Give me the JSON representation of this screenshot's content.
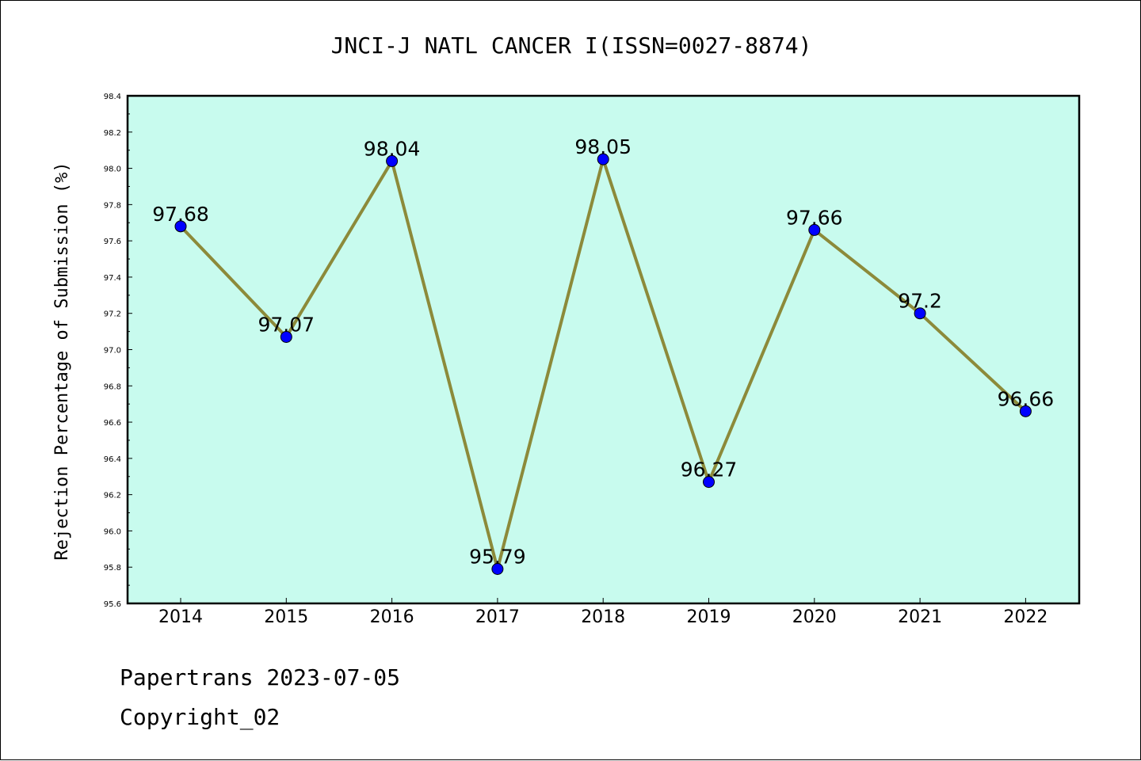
{
  "page": {
    "background": "#ffffff",
    "footer": {
      "line1": "Papertrans 2023-07-05",
      "line2": "Copyright_02"
    }
  },
  "chart_data": {
    "type": "line",
    "title": "JNCI-J NATL CANCER I(ISSN=0027-8874)",
    "xlabel": "",
    "ylabel": "Rejection Percentage of Submission (%)",
    "categories": [
      "2014",
      "2015",
      "2016",
      "2017",
      "2018",
      "2019",
      "2020",
      "2021",
      "2022"
    ],
    "series": [
      {
        "values": [
          97.68,
          97.07,
          98.04,
          95.79,
          98.05,
          96.27,
          97.66,
          97.2,
          96.66
        ],
        "data_labels": [
          "97.68",
          "97.07",
          "98.04",
          "95.79",
          "98.05",
          "96.27",
          "97.66",
          "97.2",
          "96.66"
        ],
        "line_color": "#8c8a3a",
        "marker_color": "#0000ff"
      }
    ],
    "ylim": [
      95.6,
      98.4
    ],
    "yticks": [
      "95.6",
      "95.8",
      "96.0",
      "96.2",
      "96.4",
      "96.6",
      "96.8",
      "97.0",
      "97.2",
      "97.4",
      "97.6",
      "97.8",
      "98.0",
      "98.2",
      "98.4"
    ],
    "grid": false,
    "plot_background": "#c8fbee",
    "legend": "none"
  }
}
